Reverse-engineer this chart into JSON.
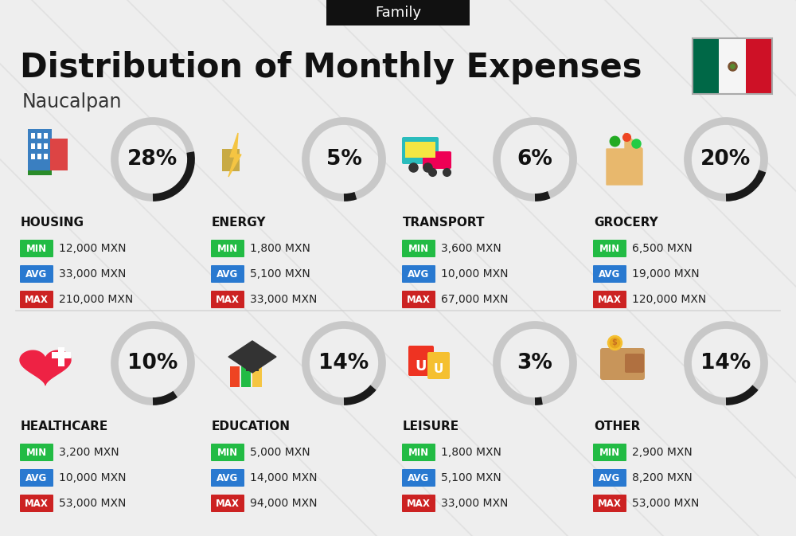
{
  "title": "Distribution of Monthly Expenses",
  "subtitle": "Naucalpan",
  "header_label": "Family",
  "bg_color": "#eeeeee",
  "categories": [
    {
      "name": "HOUSING",
      "percent": 28,
      "icon_text": "housing",
      "min_val": "12,000 MXN",
      "avg_val": "33,000 MXN",
      "max_val": "210,000 MXN",
      "row": 0,
      "col": 0
    },
    {
      "name": "ENERGY",
      "percent": 5,
      "icon_text": "energy",
      "min_val": "1,800 MXN",
      "avg_val": "5,100 MXN",
      "max_val": "33,000 MXN",
      "row": 0,
      "col": 1
    },
    {
      "name": "TRANSPORT",
      "percent": 6,
      "icon_text": "transport",
      "min_val": "3,600 MXN",
      "avg_val": "10,000 MXN",
      "max_val": "67,000 MXN",
      "row": 0,
      "col": 2
    },
    {
      "name": "GROCERY",
      "percent": 20,
      "icon_text": "grocery",
      "min_val": "6,500 MXN",
      "avg_val": "19,000 MXN",
      "max_val": "120,000 MXN",
      "row": 0,
      "col": 3
    },
    {
      "name": "HEALTHCARE",
      "percent": 10,
      "icon_text": "healthcare",
      "min_val": "3,200 MXN",
      "avg_val": "10,000 MXN",
      "max_val": "53,000 MXN",
      "row": 1,
      "col": 0
    },
    {
      "name": "EDUCATION",
      "percent": 14,
      "icon_text": "education",
      "min_val": "5,000 MXN",
      "avg_val": "14,000 MXN",
      "max_val": "94,000 MXN",
      "row": 1,
      "col": 1
    },
    {
      "name": "LEISURE",
      "percent": 3,
      "icon_text": "leisure",
      "min_val": "1,800 MXN",
      "avg_val": "5,100 MXN",
      "max_val": "33,000 MXN",
      "row": 1,
      "col": 2
    },
    {
      "name": "OTHER",
      "percent": 14,
      "icon_text": "other",
      "min_val": "2,900 MXN",
      "avg_val": "8,200 MXN",
      "max_val": "53,000 MXN",
      "row": 1,
      "col": 3
    }
  ],
  "min_color": "#22bb44",
  "avg_color": "#2979d0",
  "max_color": "#cc2222",
  "donut_dark": "#1a1a1a",
  "donut_light": "#c8c8c8",
  "title_fontsize": 30,
  "subtitle_fontsize": 17,
  "cat_fontsize": 11,
  "val_fontsize": 10,
  "pct_fontsize": 19,
  "header_bg": "#111111",
  "header_fg": "#ffffff",
  "flag_green": "#006847",
  "flag_white": "#f5f5f5",
  "flag_red": "#ce1126",
  "diagonal_color": "#d8d8d8",
  "separator_color": "#cccccc"
}
